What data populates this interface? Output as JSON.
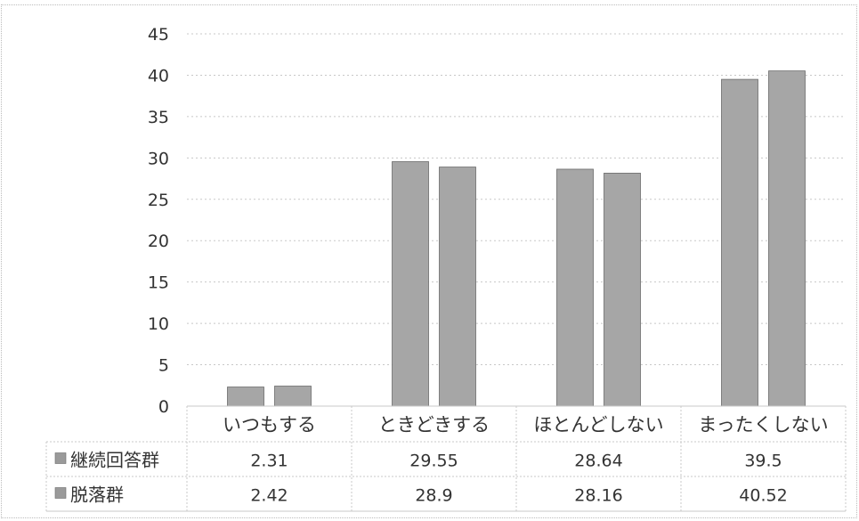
{
  "chart_data": {
    "type": "bar",
    "categories": [
      "いつもする",
      "ときどきする",
      "ほとんどしない",
      "まったくしない"
    ],
    "series": [
      {
        "name": "継続回答群",
        "values": [
          2.31,
          29.55,
          28.64,
          39.5
        ]
      },
      {
        "name": "脱落群",
        "values": [
          2.42,
          28.9,
          28.16,
          40.52
        ]
      }
    ],
    "table_values": [
      [
        "2.31",
        "29.55",
        "28.64",
        "39.5"
      ],
      [
        "2.42",
        "28.9",
        "28.16",
        "40.52"
      ]
    ],
    "ylim": [
      0,
      45
    ],
    "yticks": [
      0,
      5,
      10,
      15,
      20,
      25,
      30,
      35,
      40,
      45
    ],
    "grid": true,
    "legend": "data-table-rows",
    "title": "",
    "xlabel": "",
    "ylabel": "",
    "colors": {
      "bar": "#a6a6a6",
      "bar_edge": "#6b6b6b",
      "legend_key": "#9a9a9a",
      "grid": "#c8c8c8",
      "text": "#333333"
    }
  }
}
